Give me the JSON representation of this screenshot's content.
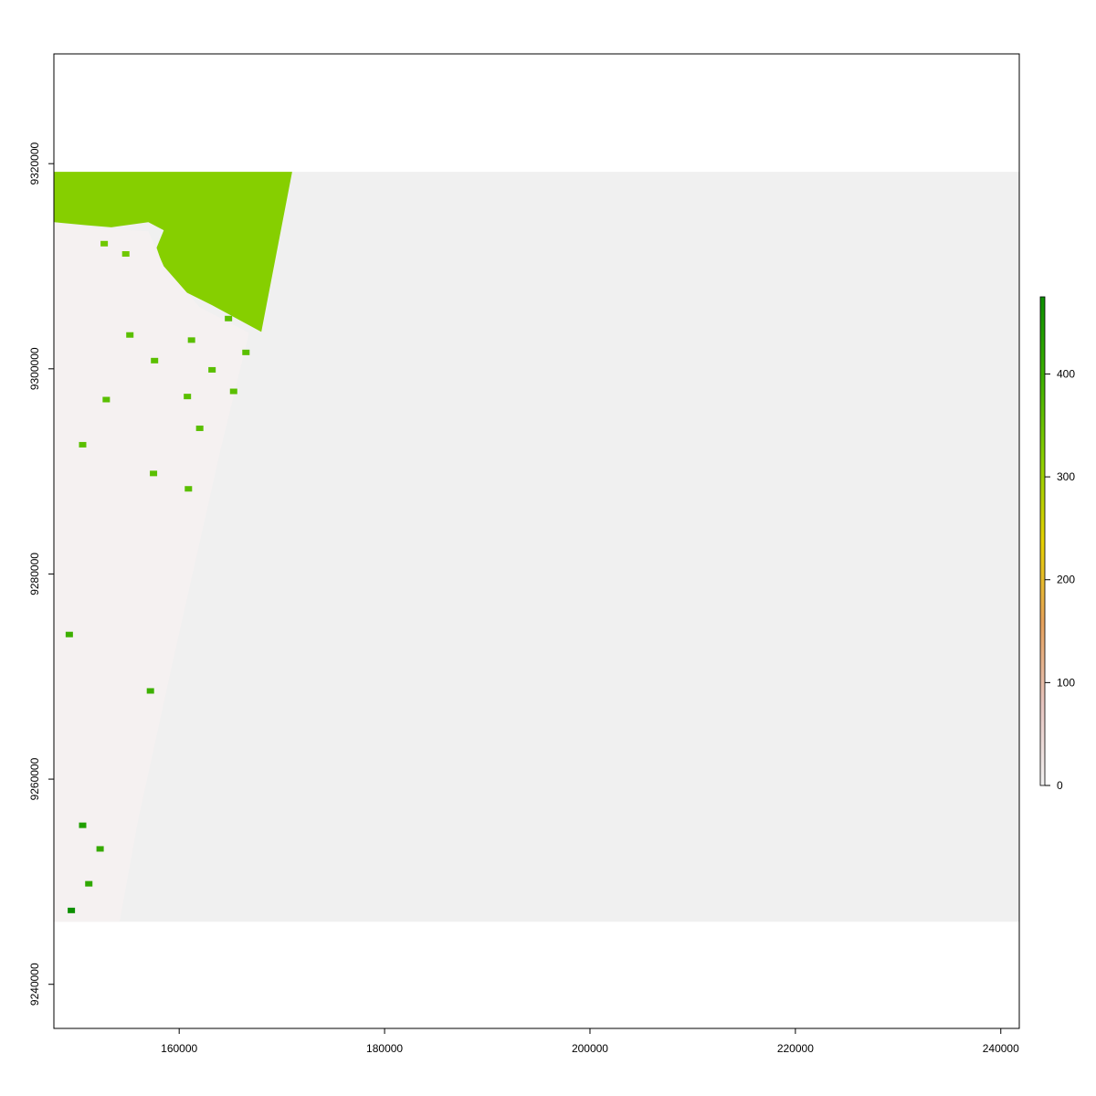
{
  "chart_data": {
    "type": "heatmap",
    "title": "",
    "xlabel": "",
    "ylabel": "",
    "xlim": [
      147800,
      241800
    ],
    "ylim": [
      9235700,
      9330700
    ],
    "raster_extent": {
      "x": [
        147800,
        241800
      ],
      "y": [
        9246100,
        9319200
      ]
    },
    "xticks": [
      {
        "value": 160000,
        "label": "160000"
      },
      {
        "value": 180000,
        "label": "180000"
      },
      {
        "value": 200000,
        "label": "200000"
      },
      {
        "value": 220000,
        "label": "220000"
      },
      {
        "value": 240000,
        "label": "240000"
      }
    ],
    "yticks": [
      {
        "value": 9240000,
        "label": "9240000"
      },
      {
        "value": 9260000,
        "label": "9260000"
      },
      {
        "value": 9280000,
        "label": "9280000"
      },
      {
        "value": 9300000,
        "label": "9300000"
      },
      {
        "value": 9320000,
        "label": "9320000"
      }
    ],
    "legend": {
      "placement": "right",
      "range": [
        0,
        475
      ],
      "ticks": [
        {
          "value": 0,
          "label": "0"
        },
        {
          "value": 100,
          "label": "100"
        },
        {
          "value": 200,
          "label": "200"
        },
        {
          "value": 300,
          "label": "300"
        },
        {
          "value": 400,
          "label": "400"
        }
      ],
      "colors": [
        "#f2f2f2",
        "#e6c4bf",
        "#e6a15c",
        "#e6d100",
        "#8bd000",
        "#3db000",
        "#0c8f00"
      ]
    },
    "nodata_color": "#f0f0f0",
    "regions": [
      {
        "name": "high-value-patch",
        "value": 310,
        "color": "#86cf00",
        "polygon": [
          [
            147800,
            9319200
          ],
          [
            171000,
            9319200
          ],
          [
            168000,
            9303600
          ],
          [
            163200,
            9306200
          ],
          [
            159000,
            9308300
          ],
          [
            157800,
            9311800
          ],
          [
            158500,
            9313500
          ],
          [
            157000,
            9314300
          ],
          [
            153400,
            9313800
          ],
          [
            151000,
            9314000
          ],
          [
            147800,
            9314300
          ]
        ]
      },
      {
        "name": "low-value-swath",
        "value": 5,
        "color": "#f5f1f1",
        "polygon": [
          [
            147800,
            9314300
          ],
          [
            152000,
            9313700
          ],
          [
            157000,
            9313400
          ],
          [
            158500,
            9310000
          ],
          [
            162000,
            9306000
          ],
          [
            166800,
            9303500
          ],
          [
            164000,
            9292000
          ],
          [
            159500,
            9272000
          ],
          [
            156000,
            9256000
          ],
          [
            154200,
            9246100
          ],
          [
            147800,
            9246100
          ]
        ]
      }
    ],
    "patches": [
      {
        "x": 150600,
        "y": 9255500,
        "value": 420,
        "color": "#1f9f00"
      },
      {
        "x": 149500,
        "y": 9247200,
        "value": 470,
        "color": "#0c8f00"
      },
      {
        "x": 151200,
        "y": 9249800,
        "value": 400,
        "color": "#2fa800"
      },
      {
        "x": 152300,
        "y": 9253200,
        "value": 390,
        "color": "#35a900"
      },
      {
        "x": 149300,
        "y": 9274100,
        "value": 370,
        "color": "#3db000"
      },
      {
        "x": 157200,
        "y": 9268600,
        "value": 370,
        "color": "#3db000"
      },
      {
        "x": 157500,
        "y": 9289800,
        "value": 330,
        "color": "#5abf00"
      },
      {
        "x": 161200,
        "y": 9302800,
        "value": 330,
        "color": "#5abf00"
      },
      {
        "x": 157600,
        "y": 9300800,
        "value": 330,
        "color": "#5abf00"
      },
      {
        "x": 165300,
        "y": 9297800,
        "value": 330,
        "color": "#5abf00"
      },
      {
        "x": 163200,
        "y": 9299900,
        "value": 330,
        "color": "#5abf00"
      },
      {
        "x": 162000,
        "y": 9294200,
        "value": 330,
        "color": "#5abf00"
      },
      {
        "x": 166500,
        "y": 9301600,
        "value": 330,
        "color": "#5abf00"
      },
      {
        "x": 160800,
        "y": 9297300,
        "value": 330,
        "color": "#5abf00"
      },
      {
        "x": 164800,
        "y": 9304900,
        "value": 330,
        "color": "#5abf00"
      },
      {
        "x": 155200,
        "y": 9303300,
        "value": 330,
        "color": "#5abf00"
      },
      {
        "x": 152700,
        "y": 9312200,
        "value": 320,
        "color": "#70c800"
      },
      {
        "x": 154800,
        "y": 9311200,
        "value": 320,
        "color": "#70c800"
      },
      {
        "x": 152900,
        "y": 9297000,
        "value": 330,
        "color": "#5abf00"
      },
      {
        "x": 150600,
        "y": 9292600,
        "value": 330,
        "color": "#5abf00"
      },
      {
        "x": 160900,
        "y": 9288300,
        "value": 330,
        "color": "#5abf00"
      }
    ]
  }
}
